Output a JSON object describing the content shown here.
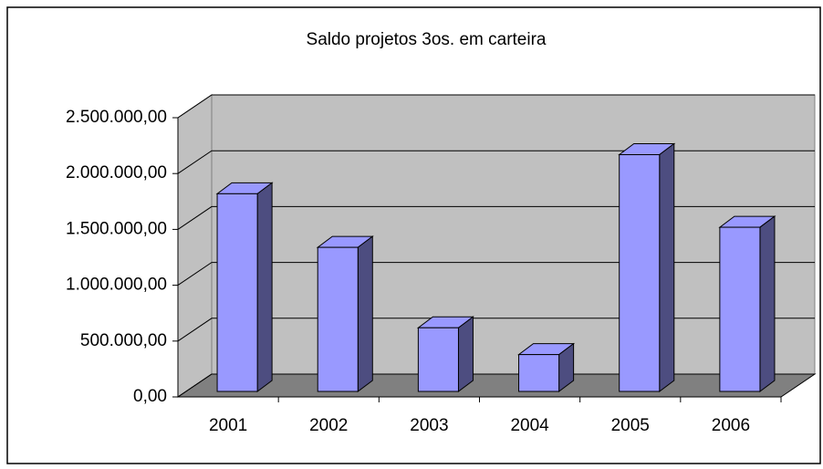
{
  "chart_data": {
    "type": "bar3d",
    "title": "Saldo projetos 3os. em carteira",
    "categories": [
      "2001",
      "2002",
      "2003",
      "2004",
      "2005",
      "2006"
    ],
    "values": [
      1770000,
      1290000,
      570000,
      330000,
      2120000,
      1470000
    ],
    "color": "#9999ff",
    "ylim": [
      0,
      2500000
    ],
    "yticks": [
      {
        "value": 0,
        "label": "0,00"
      },
      {
        "value": 500000,
        "label": "500.000,00"
      },
      {
        "value": 1000000,
        "label": "1.000.000,00"
      },
      {
        "value": 1500000,
        "label": "1.500.000,00"
      },
      {
        "value": 2000000,
        "label": "2.000.000,00"
      },
      {
        "value": 2500000,
        "label": "2.500.000,00"
      }
    ],
    "grid": true
  }
}
